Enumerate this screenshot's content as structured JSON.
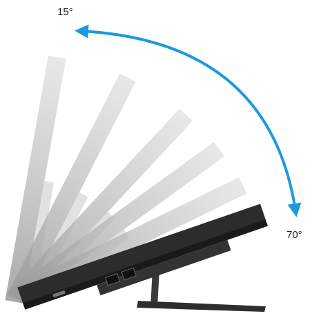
{
  "labels": {
    "min_angle": "15°",
    "max_angle": "70°"
  }
}
